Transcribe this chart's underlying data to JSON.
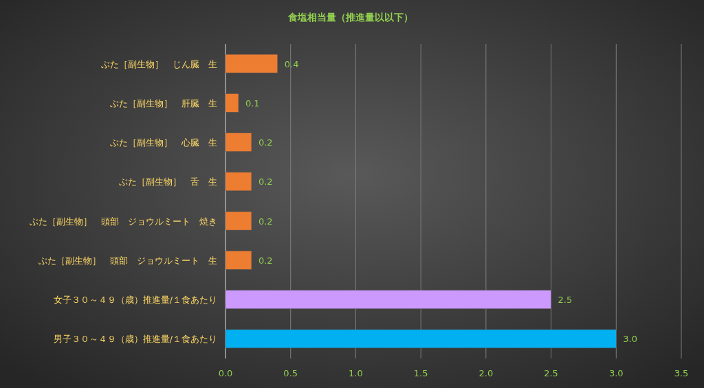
{
  "chart_data": {
    "type": "bar",
    "title": "食塩相当量（推進量以以下）",
    "orientation": "horizontal",
    "categories": [
      "ぶた［副生物］　じん臓　生",
      "ぶた［副生物］　肝臓　生",
      "ぶた［副生物］　心臓　生",
      "ぶた［副生物］　舌　生",
      "ぶた［副生物］　頭部　ジョウルミート　焼き",
      "ぶた［副生物］　頭部　ジョウルミート　生",
      "女子３０～４９（歳）推進量/１食あたり",
      "男子３０～４９（歳）推進量/１食あたり"
    ],
    "values": [
      0.4,
      0.1,
      0.2,
      0.2,
      0.2,
      0.2,
      2.5,
      3.0
    ],
    "colors": [
      "#ed7d31",
      "#ed7d31",
      "#ed7d31",
      "#ed7d31",
      "#ed7d31",
      "#ed7d31",
      "#cc99ff",
      "#00b0f0"
    ],
    "value_labels": [
      "0.4",
      "0.1",
      "0.2",
      "0.2",
      "0.2",
      "0.2",
      "2.5",
      "3.0"
    ],
    "xlim": [
      0,
      3.5
    ],
    "xticks": [
      {
        "value": 0,
        "label": "0.0"
      },
      {
        "value": 0.5,
        "label": "0.5"
      },
      {
        "value": 1,
        "label": "1.0"
      },
      {
        "value": 1.5,
        "label": "1.5"
      },
      {
        "value": 2,
        "label": "2.0"
      },
      {
        "value": 2.5,
        "label": "2.5"
      },
      {
        "value": 3,
        "label": "3.0"
      },
      {
        "value": 3.5,
        "label": "3.5"
      }
    ],
    "grid": "x"
  }
}
